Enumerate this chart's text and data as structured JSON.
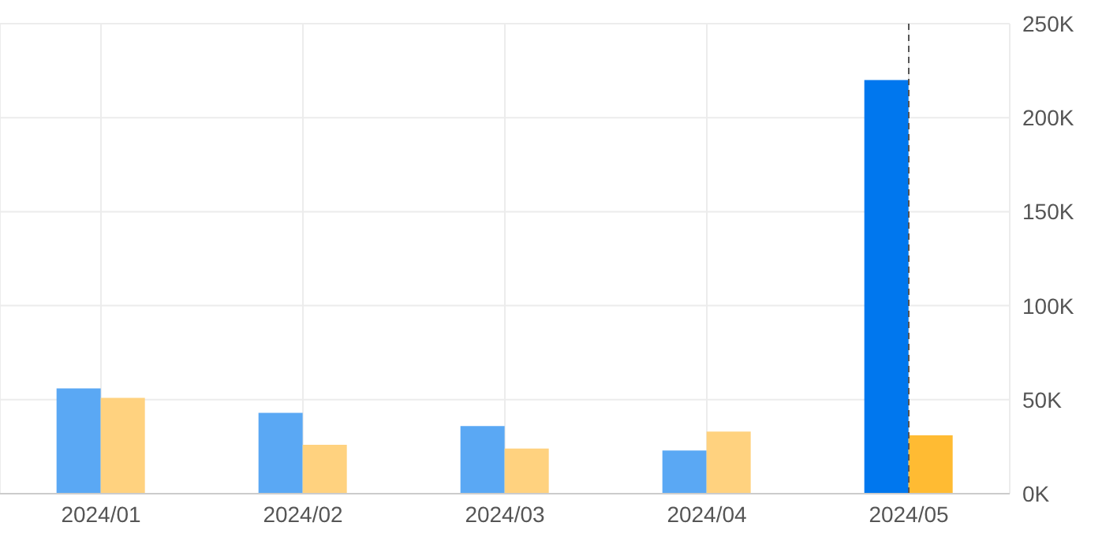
{
  "chart_data": {
    "type": "bar",
    "categories": [
      "2024/01",
      "2024/02",
      "2024/03",
      "2024/04",
      "2024/05"
    ],
    "series": [
      {
        "colors": [
          "#5aa8f4",
          "#5aa8f4",
          "#5aa8f4",
          "#5aa8f4",
          "#0077ee"
        ],
        "values": [
          56000,
          43000,
          36000,
          23000,
          220000
        ]
      },
      {
        "colors": [
          "#ffd27f",
          "#ffd27f",
          "#ffd27f",
          "#ffd27f",
          "#ffbb33"
        ],
        "values": [
          51000,
          26000,
          24000,
          33000,
          31000
        ]
      }
    ],
    "ylim": [
      0,
      250000
    ],
    "yticks": [
      {
        "value": 0,
        "label": "0K"
      },
      {
        "value": 50000,
        "label": "50K"
      },
      {
        "value": 100000,
        "label": "100K"
      },
      {
        "value": 150000,
        "label": "150K"
      },
      {
        "value": 200000,
        "label": "200K"
      },
      {
        "value": 250000,
        "label": "250K"
      }
    ],
    "grid": true,
    "ref_lines": [
      {
        "axis": "x",
        "value": "2024/05",
        "color": "#555555",
        "line_style": "dashed"
      }
    ]
  }
}
